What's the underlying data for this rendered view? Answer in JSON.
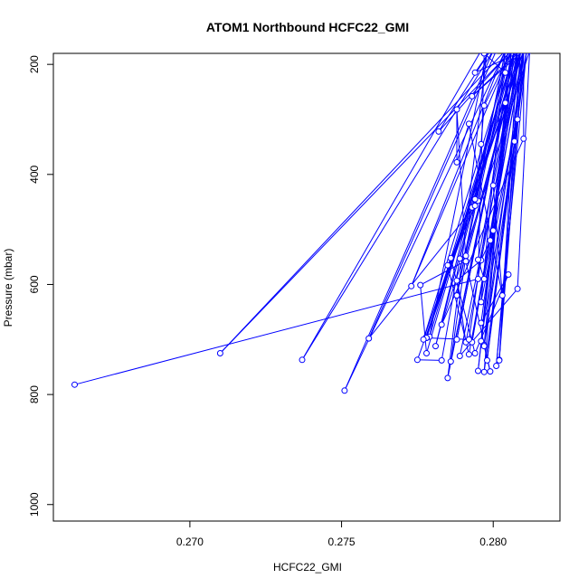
{
  "chart_data": {
    "type": "scatter",
    "title": "ATOM1 Northbound HCFC22_GMI",
    "xlabel": "HCFC22_GMI",
    "ylabel": "Pressure (mbar)",
    "xlim": [
      0.2655,
      0.2822
    ],
    "ylim": [
      1030,
      180
    ],
    "y_reversed": true,
    "x_ticks": [
      0.27,
      0.275,
      0.28
    ],
    "x_tick_labels": [
      "0.270",
      "0.275",
      "0.280"
    ],
    "y_ticks": [
      200,
      400,
      600,
      800,
      1000
    ],
    "y_tick_labels": [
      "200",
      "400",
      "600",
      "800",
      "1000"
    ],
    "grid": false,
    "series": [
      {
        "color": "#0000ff",
        "marker": "open-circle",
        "connected": true,
        "points": [
          [
            0.2662,
            782
          ],
          [
            0.2795,
            590
          ],
          [
            0.2797,
            180
          ],
          [
            0.2804,
            215
          ],
          [
            0.2795,
            448
          ],
          [
            0.2785,
            565
          ],
          [
            0.2792,
            727
          ],
          [
            0.281,
            175
          ],
          [
            0.281,
            335
          ],
          [
            0.2783,
            673
          ],
          [
            0.2812,
            175
          ],
          [
            0.2808,
            608
          ],
          [
            0.2789,
            730
          ],
          [
            0.281,
            175
          ],
          [
            0.2798,
            738
          ],
          [
            0.2811,
            175
          ],
          [
            0.2797,
            759
          ],
          [
            0.2804,
            270
          ],
          [
            0.2796,
            703
          ],
          [
            0.2811,
            175
          ],
          [
            0.2801,
            748
          ],
          [
            0.281,
            175
          ],
          [
            0.2797,
            710
          ],
          [
            0.2806,
            175
          ],
          [
            0.2795,
            757
          ],
          [
            0.2807,
            175
          ],
          [
            0.2799,
            520
          ],
          [
            0.2796,
            556
          ],
          [
            0.2788,
            593
          ],
          [
            0.2791,
            705
          ],
          [
            0.2809,
            175
          ],
          [
            0.2802,
            737
          ],
          [
            0.2809,
            175
          ],
          [
            0.2793,
            705
          ],
          [
            0.281,
            175
          ],
          [
            0.2802,
            738
          ],
          [
            0.2808,
            175
          ],
          [
            0.2793,
            460
          ],
          [
            0.2781,
            712
          ],
          [
            0.2805,
            175
          ],
          [
            0.2788,
            620
          ],
          [
            0.2804,
            175
          ],
          [
            0.2796,
            632
          ],
          [
            0.2808,
            300
          ],
          [
            0.28,
            502
          ],
          [
            0.2797,
            590
          ],
          [
            0.2795,
            555
          ],
          [
            0.2808,
            175
          ],
          [
            0.2796,
            670
          ],
          [
            0.2805,
            582
          ],
          [
            0.2794,
            725
          ],
          [
            0.2786,
            552
          ],
          [
            0.2778,
            695
          ],
          [
            0.2809,
            175
          ],
          [
            0.2791,
            557
          ],
          [
            0.2776,
            601
          ],
          [
            0.2778,
            725
          ],
          [
            0.2807,
            175
          ],
          [
            0.2788,
            700
          ],
          [
            0.2807,
            175
          ],
          [
            0.2779,
            695
          ],
          [
            0.2798,
            175
          ],
          [
            0.2785,
            770
          ],
          [
            0.2807,
            175
          ],
          [
            0.2778,
            697
          ],
          [
            0.2809,
            175
          ],
          [
            0.2791,
            548
          ],
          [
            0.2786,
            740
          ],
          [
            0.2807,
            175
          ],
          [
            0.2789,
            553
          ],
          [
            0.2783,
            738
          ],
          [
            0.2775,
            737
          ],
          [
            0.2794,
            445
          ],
          [
            0.2796,
            345
          ],
          [
            0.2797,
            275
          ],
          [
            0.2806,
            175
          ],
          [
            0.2792,
            700
          ],
          [
            0.2778,
            697
          ],
          [
            0.281,
            175
          ],
          [
            0.2777,
            700
          ],
          [
            0.2806,
            175
          ],
          [
            0.2806,
            175
          ],
          [
            0.2773,
            603
          ],
          [
            0.2804,
            175
          ],
          [
            0.2794,
            457
          ],
          [
            0.2759,
            698
          ],
          [
            0.2801,
            175
          ],
          [
            0.2796,
            175
          ],
          [
            0.2737,
            737
          ],
          [
            0.28,
            175
          ],
          [
            0.2751,
            793
          ],
          [
            0.2804,
            175
          ],
          [
            0.271,
            725
          ],
          [
            0.2806,
            175
          ],
          [
            0.28,
            175
          ],
          [
            0.2806,
            175
          ],
          [
            0.2782,
            322
          ],
          [
            0.2799,
            175
          ],
          [
            0.2794,
            215
          ],
          [
            0.281,
            175
          ],
          [
            0.2793,
            258
          ],
          [
            0.2809,
            175
          ],
          [
            0.28,
            420
          ],
          [
            0.2803,
            620
          ],
          [
            0.2792,
            308
          ],
          [
            0.2788,
            378
          ],
          [
            0.2788,
            282
          ],
          [
            0.2791,
            558
          ],
          [
            0.2799,
            758
          ],
          [
            0.2797,
            712
          ],
          [
            0.2807,
            340
          ]
        ]
      }
    ]
  }
}
